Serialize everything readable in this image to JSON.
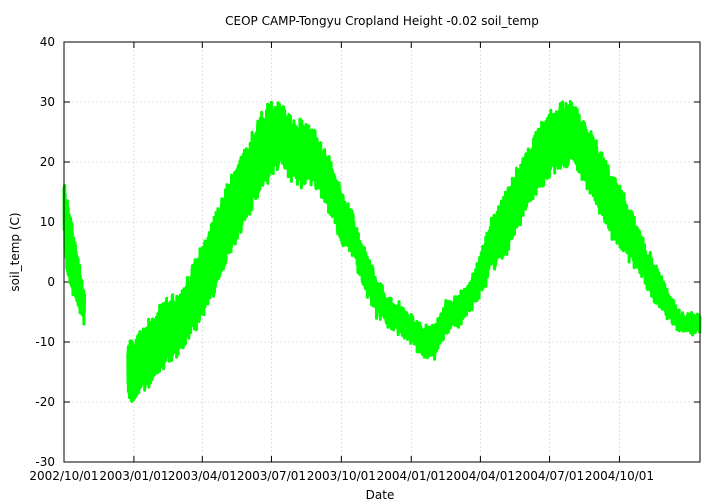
{
  "chart_data": {
    "type": "line",
    "title": "CEOP CAMP-Tongyu Cropland Height -0.02 soil_temp",
    "xlabel": "Date",
    "ylabel": "soil_temp (C)",
    "ylim": [
      -30,
      40
    ],
    "yticks": [
      "40",
      "30",
      "20",
      "10",
      "0",
      "-10",
      "-20",
      "-30"
    ],
    "xlim": [
      "2002-10-01",
      "2005-01-15"
    ],
    "xticks": [
      "2002/10/01",
      "2003/01/01",
      "2003/04/01",
      "2003/07/01",
      "2003/10/01",
      "2004/01/01",
      "2004/04/01",
      "2004/07/01",
      "2004/10/01"
    ],
    "xtick_labels": [
      "2002/10/01",
      "2003/01/01",
      "2003/04/01",
      "2003/07/01",
      "2003/10/01",
      "2004/01/01",
      "2004/04/01",
      "2004/07/01",
      "2004/10/01"
    ],
    "grid": true,
    "legend": "none",
    "series": [
      {
        "color": "#00ff00",
        "segments": [
          {
            "x": [
              "2002-10-01",
              "2002-10-05",
              "2002-10-10",
              "2002-10-15",
              "2002-10-20",
              "2002-10-25",
              "2002-10-28"
            ],
            "mean": [
              12,
              8,
              5,
              2,
              0,
              -3,
              -4
            ],
            "amp": [
              5,
              6,
              6,
              5,
              4,
              3,
              3
            ]
          },
          {
            "x": [
              "2002-12-24",
              "2003-01-01",
              "2003-01-10",
              "2003-01-20",
              "2003-02-01",
              "2003-02-15",
              "2003-03-01",
              "2003-03-15",
              "2003-04-01",
              "2003-04-15",
              "2003-05-01",
              "2003-05-15",
              "2003-06-01",
              "2003-06-15",
              "2003-07-01",
              "2003-07-15",
              "2003-08-01",
              "2003-08-15",
              "2003-09-01",
              "2003-09-15",
              "2003-10-01",
              "2003-10-15",
              "2003-11-01",
              "2003-11-15",
              "2003-12-01",
              "2003-12-15",
              "2004-01-01",
              "2004-01-15",
              "2004-02-01",
              "2004-02-15",
              "2004-03-01",
              "2004-03-15",
              "2004-04-01",
              "2004-04-15",
              "2004-05-01",
              "2004-05-15",
              "2004-06-01",
              "2004-06-15",
              "2004-07-01",
              "2004-07-15",
              "2004-08-01",
              "2004-08-15",
              "2004-09-01",
              "2004-09-15",
              "2004-10-01",
              "2004-10-15",
              "2004-11-01",
              "2004-11-15",
              "2004-12-01",
              "2004-12-15",
              "2005-01-01",
              "2005-01-15"
            ],
            "mean": [
              -15,
              -15,
              -13,
              -12,
              -10,
              -8,
              -7,
              -4,
              0,
              4,
              9,
              13,
              17,
              21,
              24,
              24,
              22,
              21,
              20,
              16,
              11,
              8,
              2,
              -2,
              -5,
              -6,
              -8,
              -10,
              -10,
              -6,
              -5,
              -3,
              1,
              6,
              9,
              13,
              17,
              20,
              23,
              24,
              25,
              22,
              18,
              14,
              11,
              8,
              4,
              0,
              -3,
              -6,
              -7,
              -7
            ],
            "amp": [
              5,
              5,
              5,
              5,
              5,
              5,
              5,
              5,
              6,
              6,
              6,
              6,
              6,
              6,
              6,
              5,
              5,
              5,
              4,
              4,
              4,
              3,
              3,
              3,
              2,
              2,
              2,
              2,
              2,
              2,
              2,
              2,
              3,
              4,
              5,
              5,
              5,
              5,
              5,
              5,
              5,
              5,
              5,
              5,
              5,
              4,
              3,
              3,
              2,
              1,
              1,
              1
            ]
          }
        ]
      }
    ]
  }
}
